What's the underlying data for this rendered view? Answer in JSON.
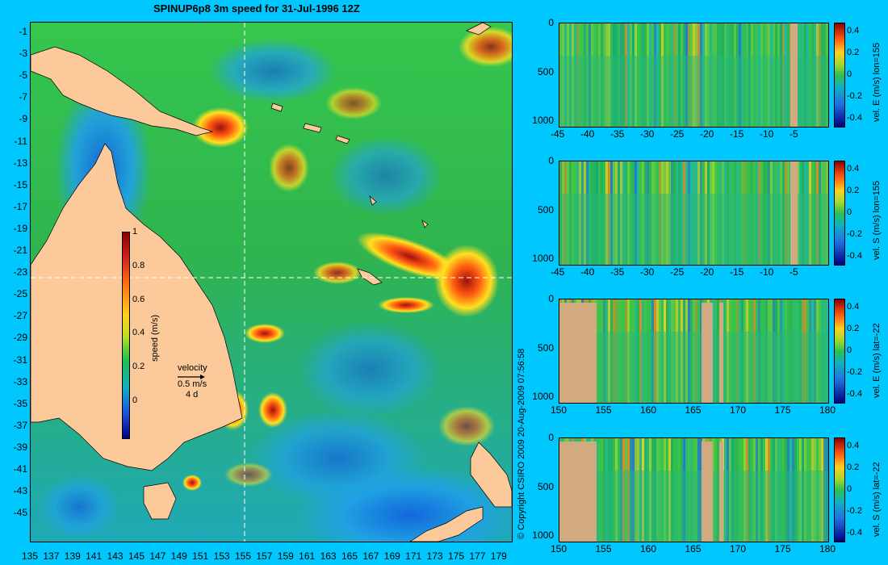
{
  "title": "SPINUP6p8 3m speed for 31-Jul-1996 12Z",
  "map": {
    "y_ticks": [
      "-1",
      "-3",
      "-5",
      "-7",
      "-9",
      "-11",
      "-13",
      "-15",
      "-17",
      "-19",
      "-21",
      "-23",
      "-25",
      "-27",
      "-29",
      "-31",
      "-33",
      "-35",
      "-37",
      "-39",
      "-41",
      "-43",
      "-45"
    ],
    "x_ticks": [
      "135",
      "137",
      "139",
      "141",
      "143",
      "145",
      "147",
      "149",
      "151",
      "153",
      "155",
      "157",
      "159",
      "161",
      "163",
      "165",
      "167",
      "169",
      "171",
      "173",
      "175",
      "177",
      "179"
    ],
    "speed_colorbar": {
      "label": "speed (m/s)",
      "ticks": [
        "1",
        "0.8",
        "0.6",
        "0.4",
        "0.2",
        "0"
      ]
    },
    "velocity_key": {
      "title": "velocity",
      "scale": "0.5 m/s",
      "duration": "4 d"
    },
    "crosshair": {
      "lon": 155,
      "lat": -22
    },
    "colors": {
      "land": "#fcc99a",
      "background": "#00c8ff"
    }
  },
  "copyright": "© Copyright CSIRO 2009   20-Aug-2009 07:56:58",
  "sections": [
    {
      "label": "vel. E (m/s) lon=155",
      "x_ticks": [
        "-45",
        "-40",
        "-35",
        "-30",
        "-25",
        "-20",
        "-15",
        "-10",
        "-5"
      ],
      "depth_ticks": [
        "0",
        "500",
        "1000"
      ],
      "cbar_ticks": [
        "0.4",
        "0.2",
        "0",
        "-0.2",
        "-0.4"
      ]
    },
    {
      "label": "vel. S (m/s) lon=155",
      "x_ticks": [
        "-45",
        "-40",
        "-35",
        "-30",
        "-25",
        "-20",
        "-15",
        "-10",
        "-5"
      ],
      "depth_ticks": [
        "0",
        "500",
        "1000"
      ],
      "cbar_ticks": [
        "0.4",
        "0.2",
        "0",
        "-0.2",
        "-0.4"
      ]
    },
    {
      "label": "vel. E (m/s) lat=-22",
      "x_ticks": [
        "150",
        "155",
        "160",
        "165",
        "170",
        "175",
        "180"
      ],
      "depth_ticks": [
        "0",
        "500",
        "1000"
      ],
      "cbar_ticks": [
        "0.4",
        "0.2",
        "0",
        "-0.2",
        "-0.4"
      ]
    },
    {
      "label": "vel. S (m/s) lat=-22",
      "x_ticks": [
        "150",
        "155",
        "160",
        "165",
        "170",
        "175",
        "180"
      ],
      "depth_ticks": [
        "0",
        "500",
        "1000"
      ],
      "cbar_ticks": [
        "0.4",
        "0.2",
        "0",
        "-0.2",
        "-0.4"
      ]
    }
  ]
}
